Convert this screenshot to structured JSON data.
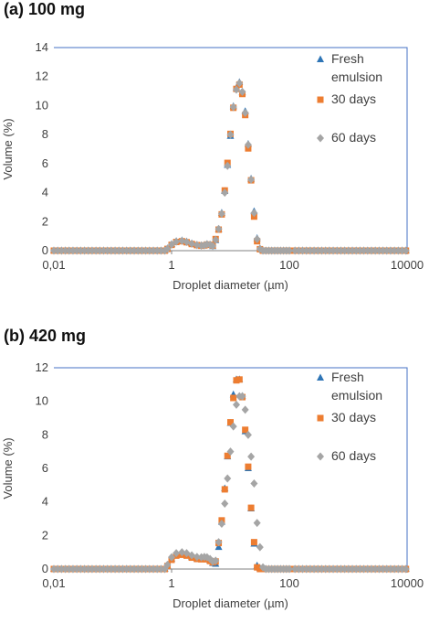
{
  "chart_data": [
    {
      "type": "scatter",
      "panel_label": "(a) 100 mg",
      "xlabel": "Droplet diameter (µm)",
      "ylabel": "Volume (%)",
      "x_scale": "log",
      "xlim": [
        0.01,
        10000
      ],
      "ylim": [
        0,
        14
      ],
      "x_tick_labels": [
        "0,01",
        "1",
        "100",
        "10000"
      ],
      "x_tick_values": [
        0.01,
        1,
        100,
        10000
      ],
      "y_ticks": [
        0,
        2,
        4,
        6,
        8,
        10,
        12,
        14
      ],
      "grid": false,
      "legend_position": "top-right",
      "legend": [
        "Fresh emulsion",
        "30 days",
        "60 days"
      ],
      "series": [
        {
          "name": "Fresh emulsion",
          "color": "#2E75B6",
          "marker": "triangle",
          "x": [
            0.01,
            0.05,
            0.2,
            0.5,
            0.7,
            0.85,
            1.0,
            1.2,
            1.5,
            1.8,
            2.2,
            2.7,
            3.2,
            3.6,
            4.0,
            4.5,
            5.0,
            5.6,
            6.3,
            7.1,
            8.0,
            8.9,
            10.0,
            11.2,
            12.6,
            14.2,
            15.9,
            17.8,
            20.0,
            22.4,
            25.2,
            28.3,
            31.7,
            35.6,
            39.9,
            44.8,
            50.2,
            56.4,
            63.2,
            71.0,
            79.6,
            89.3,
            100,
            1000,
            10000
          ],
          "values": [
            0,
            0,
            0,
            0,
            0,
            0.15,
            0.45,
            0.65,
            0.7,
            0.62,
            0.5,
            0.4,
            0.36,
            0.38,
            0.45,
            0.42,
            0.3,
            0.72,
            1.45,
            2.6,
            4.1,
            5.9,
            7.9,
            9.95,
            11.2,
            11.6,
            10.9,
            9.6,
            7.35,
            4.95,
            2.7,
            0.85,
            0.15,
            0,
            0,
            0,
            0,
            0,
            0,
            0,
            0,
            0,
            0,
            0,
            0
          ]
        },
        {
          "name": "30 days",
          "color": "#ED7D31",
          "marker": "square",
          "x": [
            0.01,
            0.05,
            0.2,
            0.5,
            0.7,
            0.85,
            1.0,
            1.2,
            1.5,
            1.8,
            2.2,
            2.7,
            3.2,
            3.6,
            4.0,
            4.5,
            5.0,
            5.6,
            6.3,
            7.1,
            8.0,
            8.9,
            10.0,
            11.2,
            12.6,
            14.2,
            15.9,
            17.8,
            20.0,
            22.4,
            25.2,
            28.3,
            31.7,
            35.6,
            39.9,
            44.8,
            50.2,
            56.4,
            63.2,
            71.0,
            79.6,
            89.3,
            100,
            1000,
            10000
          ],
          "values": [
            0,
            0,
            0,
            0,
            0,
            0.12,
            0.4,
            0.6,
            0.65,
            0.58,
            0.46,
            0.38,
            0.34,
            0.36,
            0.42,
            0.4,
            0.35,
            0.8,
            1.45,
            2.5,
            4.15,
            6.05,
            8.05,
            9.85,
            11.15,
            11.45,
            10.8,
            9.35,
            7.05,
            4.85,
            2.35,
            0.65,
            0.1,
            0,
            0,
            0,
            0,
            0,
            0,
            0,
            0,
            0,
            0,
            0,
            0
          ]
        },
        {
          "name": "60 days",
          "color": "#A5A5A5",
          "marker": "diamond",
          "x": [
            0.01,
            0.05,
            0.2,
            0.5,
            0.7,
            0.85,
            1.0,
            1.2,
            1.5,
            1.8,
            2.2,
            2.7,
            3.2,
            3.6,
            4.0,
            4.5,
            5.0,
            5.6,
            6.3,
            7.1,
            8.0,
            8.9,
            10.0,
            11.2,
            12.6,
            14.2,
            15.9,
            17.8,
            20.0,
            22.4,
            25.2,
            28.3,
            31.7,
            35.6,
            39.9,
            44.8,
            50.2,
            56.4,
            63.2,
            71.0,
            79.6,
            89.3,
            100,
            1000,
            10000
          ],
          "values": [
            0,
            0,
            0,
            0,
            0,
            0.13,
            0.42,
            0.62,
            0.68,
            0.6,
            0.48,
            0.39,
            0.35,
            0.37,
            0.44,
            0.41,
            0.32,
            0.75,
            1.5,
            2.55,
            4.0,
            5.85,
            8.0,
            9.9,
            11.1,
            11.55,
            10.95,
            9.5,
            7.3,
            4.9,
            2.6,
            0.8,
            0.12,
            0,
            0,
            0,
            0,
            0,
            0,
            0,
            0,
            0,
            0,
            0,
            0
          ]
        }
      ]
    },
    {
      "type": "scatter",
      "panel_label": "(b) 420 mg",
      "xlabel": "Droplet diameter (µm)",
      "ylabel": "Volume (%)",
      "x_scale": "log",
      "xlim": [
        0.01,
        10000
      ],
      "ylim": [
        0,
        12
      ],
      "x_tick_labels": [
        "0,01",
        "1",
        "100",
        "10000"
      ],
      "x_tick_values": [
        0.01,
        1,
        100,
        10000
      ],
      "y_ticks": [
        0,
        2,
        4,
        6,
        8,
        10,
        12
      ],
      "grid": false,
      "legend_position": "top-right",
      "legend": [
        "Fresh emulsion",
        "30 days",
        "60 days"
      ],
      "series": [
        {
          "name": "Fresh emulsion",
          "color": "#2E75B6",
          "marker": "triangle",
          "x": [
            0.01,
            0.05,
            0.2,
            0.5,
            0.7,
            0.85,
            1.0,
            1.2,
            1.5,
            1.8,
            2.2,
            2.7,
            3.2,
            3.6,
            4.0,
            4.5,
            5.0,
            5.6,
            6.3,
            7.1,
            8.0,
            8.9,
            10.0,
            11.2,
            12.6,
            14.2,
            15.9,
            17.8,
            20.0,
            22.4,
            25.2,
            28.3,
            31.7,
            35.6,
            39.9,
            44.8,
            50.2,
            56.4,
            63.2,
            71.0,
            79.6,
            89.3,
            100,
            1000,
            10000
          ],
          "values": [
            0,
            0,
            0,
            0,
            0,
            0.2,
            0.6,
            0.85,
            0.9,
            0.85,
            0.72,
            0.62,
            0.6,
            0.62,
            0.6,
            0.5,
            0.35,
            0.3,
            1.3,
            2.8,
            4.8,
            6.7,
            8.7,
            10.4,
            11.3,
            11.3,
            10.3,
            8.2,
            6.0,
            3.6,
            1.5,
            0.2,
            0.05,
            0,
            0,
            0,
            0,
            0,
            0,
            0,
            0,
            0,
            0,
            0,
            0
          ]
        },
        {
          "name": "30 days",
          "color": "#ED7D31",
          "marker": "square",
          "x": [
            0.01,
            0.05,
            0.2,
            0.5,
            0.7,
            0.85,
            1.0,
            1.2,
            1.5,
            1.8,
            2.2,
            2.7,
            3.2,
            3.6,
            4.0,
            4.5,
            5.0,
            5.6,
            6.3,
            7.1,
            8.0,
            8.9,
            10.0,
            11.2,
            12.6,
            14.2,
            15.9,
            17.8,
            20.0,
            22.4,
            25.2,
            28.3,
            31.7,
            35.6,
            39.9,
            44.8,
            50.2,
            56.4,
            63.2,
            71.0,
            79.6,
            89.3,
            100,
            1000,
            10000
          ],
          "values": [
            0,
            0,
            0,
            0,
            0,
            0.18,
            0.55,
            0.8,
            0.85,
            0.8,
            0.68,
            0.6,
            0.58,
            0.6,
            0.58,
            0.48,
            0.4,
            0.45,
            1.55,
            2.9,
            4.75,
            6.75,
            8.75,
            10.2,
            11.25,
            11.3,
            10.25,
            8.3,
            6.1,
            3.65,
            1.6,
            0.1,
            0,
            0,
            0,
            0,
            0,
            0,
            0,
            0,
            0,
            0,
            0,
            0,
            0
          ]
        },
        {
          "name": "60 days",
          "color": "#A5A5A5",
          "marker": "diamond",
          "x": [
            0.01,
            0.05,
            0.2,
            0.5,
            0.7,
            0.85,
            1.0,
            1.2,
            1.5,
            1.8,
            2.2,
            2.7,
            3.2,
            3.6,
            4.0,
            4.5,
            5.0,
            5.6,
            6.3,
            7.1,
            8.0,
            8.9,
            10.0,
            11.2,
            12.6,
            14.2,
            15.9,
            17.8,
            20.0,
            22.4,
            25.2,
            28.3,
            31.7,
            35.6,
            39.9,
            44.8,
            50.2,
            56.4,
            63.2,
            71.0,
            79.6,
            89.3,
            100,
            1000,
            10000
          ],
          "values": [
            0,
            0,
            0,
            0,
            0,
            0.25,
            0.7,
            0.95,
            1.0,
            0.95,
            0.82,
            0.72,
            0.7,
            0.72,
            0.7,
            0.6,
            0.45,
            0.5,
            1.6,
            2.7,
            3.9,
            5.4,
            7.0,
            8.5,
            9.8,
            10.3,
            10.3,
            9.5,
            8.0,
            6.7,
            5.1,
            2.75,
            1.3,
            0.1,
            0,
            0,
            0,
            0,
            0,
            0,
            0,
            0,
            0,
            0,
            0
          ]
        }
      ]
    }
  ]
}
